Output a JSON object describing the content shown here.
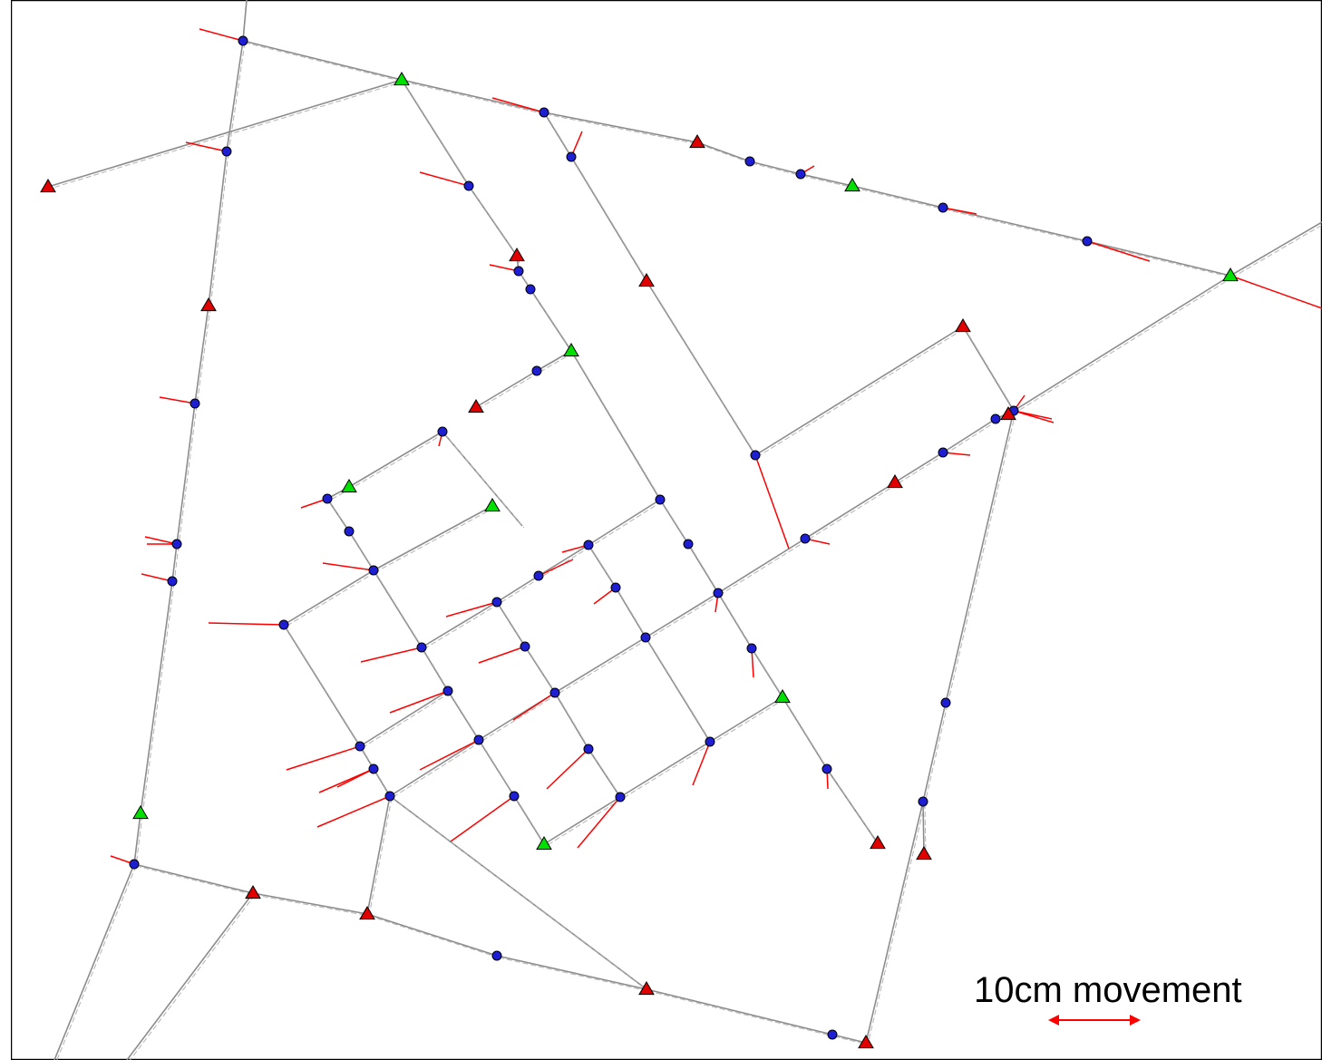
{
  "legend": {
    "scale_caption": "10cm movement"
  },
  "colors": {
    "background": "#ffffff",
    "border": "#000000",
    "network_line": "#8c8c8c",
    "displacement_vector": "#ff0000",
    "observed_point": "#1e1ed2",
    "fixed_point": "#00e000",
    "unknown_point": "#e00000"
  }
}
